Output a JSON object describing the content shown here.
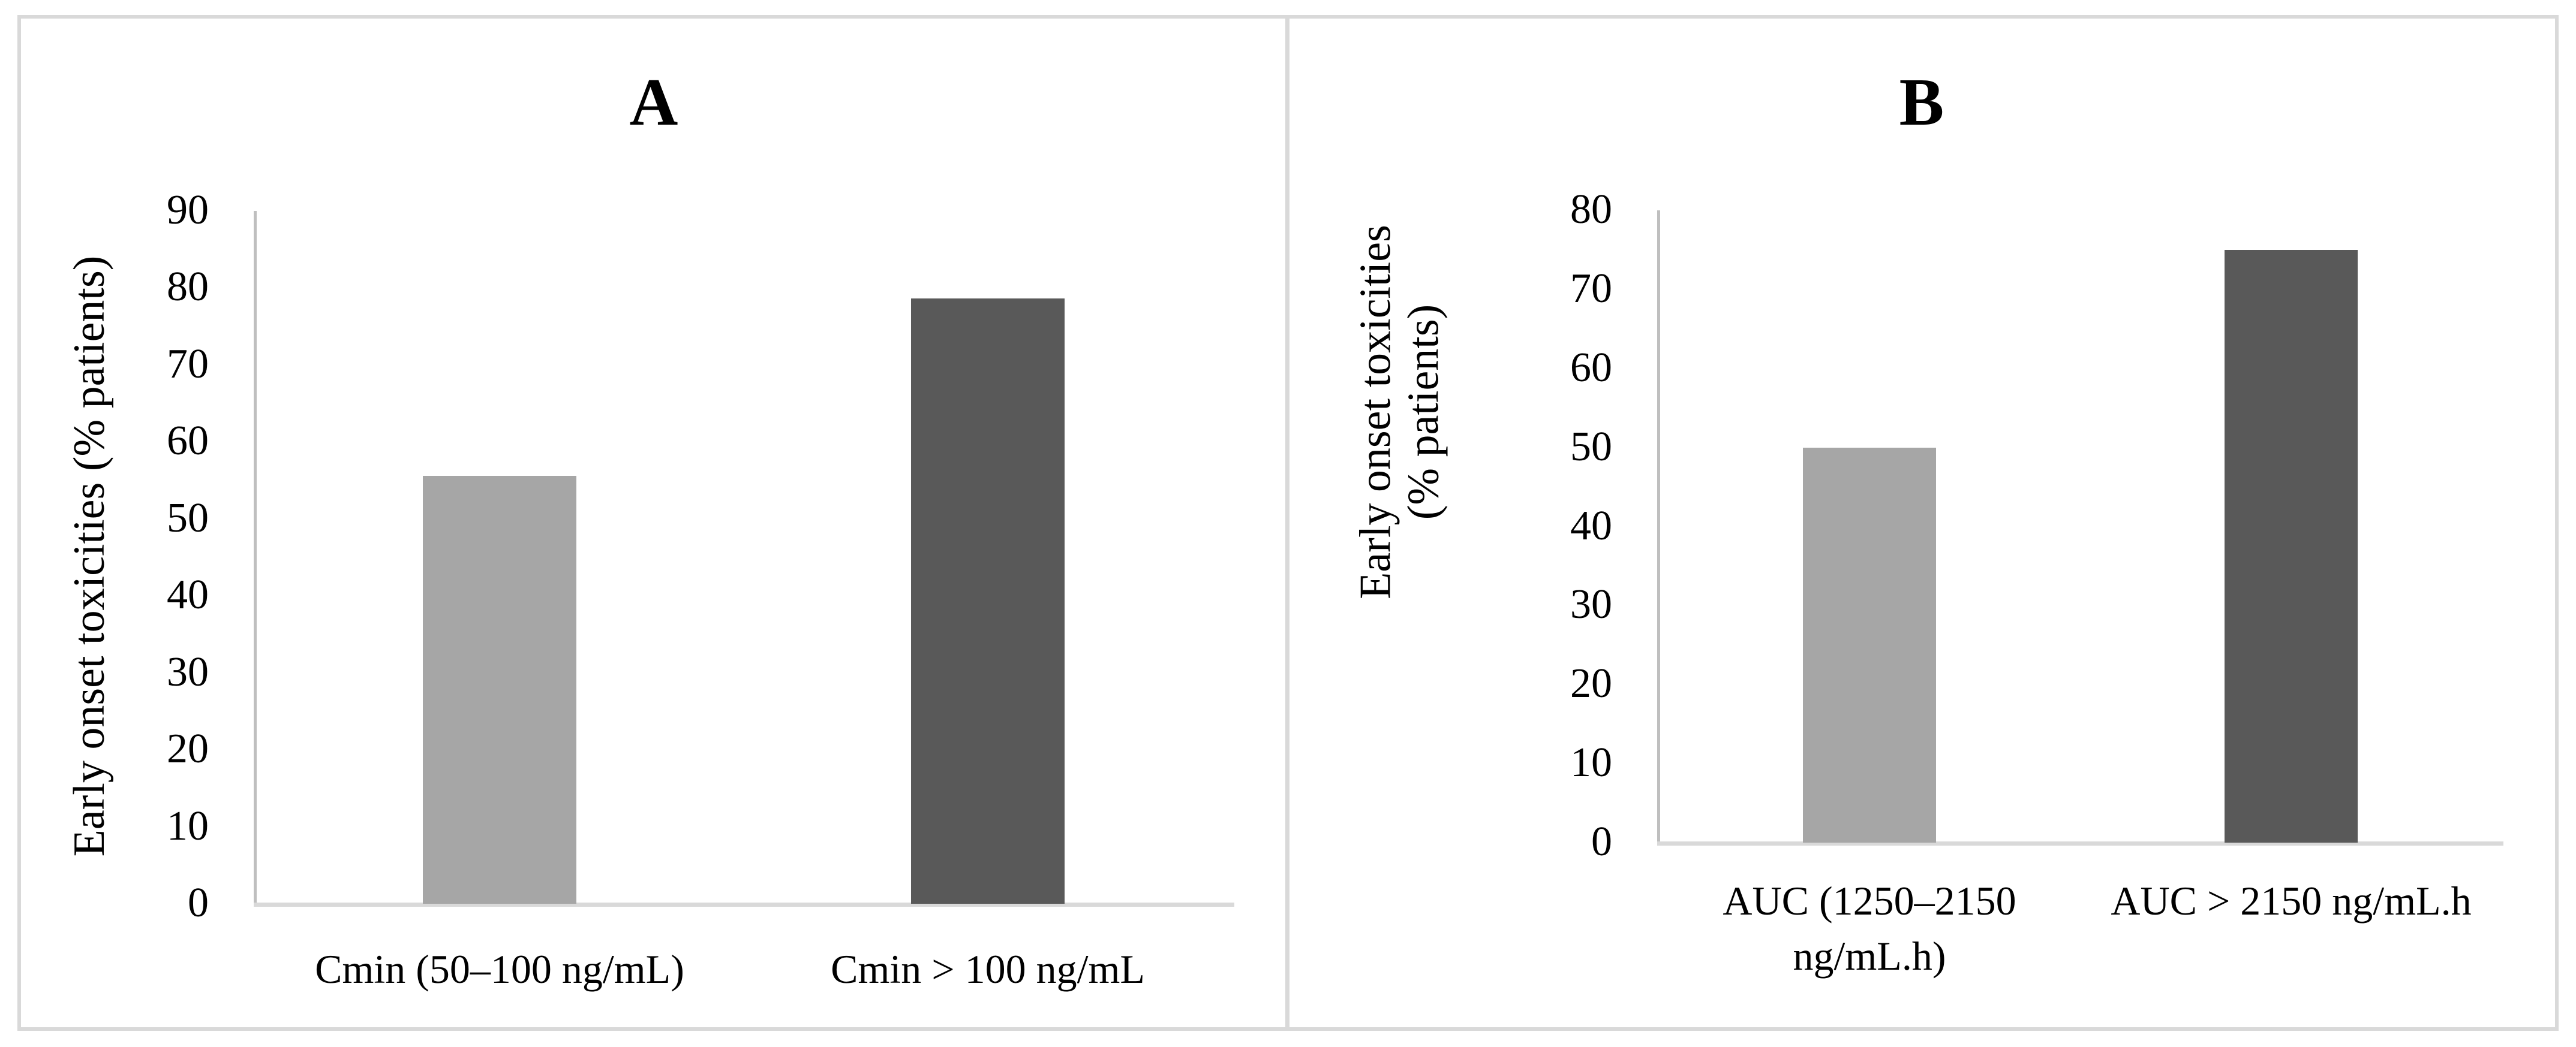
{
  "figure": {
    "panels": [
      {
        "title": "A",
        "ylabel": "Early onset toxicities (% patients)",
        "ylabel_lines": [
          "Early onset toxicities (% patients)"
        ],
        "yticks": [
          "0",
          "10",
          "20",
          "30",
          "40",
          "50",
          "60",
          "70",
          "80",
          "90"
        ],
        "categories": [
          "Cmin (50–100 ng/mL)",
          "Cmin > 100 ng/mL"
        ],
        "colors": [
          "#a6a6a6",
          "#595959"
        ]
      },
      {
        "title": "B",
        "ylabel": "Early onset toxicities (% patients)",
        "ylabel_lines": [
          "Early onset toxicities",
          "(% patients)"
        ],
        "yticks": [
          "0",
          "10",
          "20",
          "30",
          "40",
          "50",
          "60",
          "70",
          "80"
        ],
        "categories": [
          "AUC (1250–2150 ng/mL.h)",
          "AUC > 2150 ng/mL.h"
        ],
        "category_lines": [
          [
            "AUC (1250–2150",
            "ng/mL.h)"
          ],
          [
            "AUC > 2150 ng/mL.h"
          ]
        ],
        "colors": [
          "#a6a6a6",
          "#595959"
        ]
      }
    ]
  },
  "chart_data": [
    {
      "type": "bar",
      "title": "A",
      "xlabel": "",
      "ylabel": "Early onset toxicities (% patients)",
      "categories": [
        "Cmin (50–100 ng/mL)",
        "Cmin > 100 ng/mL"
      ],
      "values": [
        55.6,
        78.6
      ],
      "colors": [
        "#a6a6a6",
        "#595959"
      ],
      "ylim": [
        0,
        90
      ],
      "yticks": [
        0,
        10,
        20,
        30,
        40,
        50,
        60,
        70,
        80,
        90
      ],
      "grid": false,
      "legend": null
    },
    {
      "type": "bar",
      "title": "B",
      "xlabel": "",
      "ylabel": "Early onset toxicities (% patients)",
      "categories": [
        "AUC (1250–2150 ng/mL.h)",
        "AUC > 2150 ng/mL.h"
      ],
      "values": [
        50,
        75
      ],
      "colors": [
        "#a6a6a6",
        "#595959"
      ],
      "ylim": [
        0,
        80
      ],
      "yticks": [
        0,
        10,
        20,
        30,
        40,
        50,
        60,
        70,
        80
      ],
      "grid": false,
      "legend": null
    }
  ]
}
